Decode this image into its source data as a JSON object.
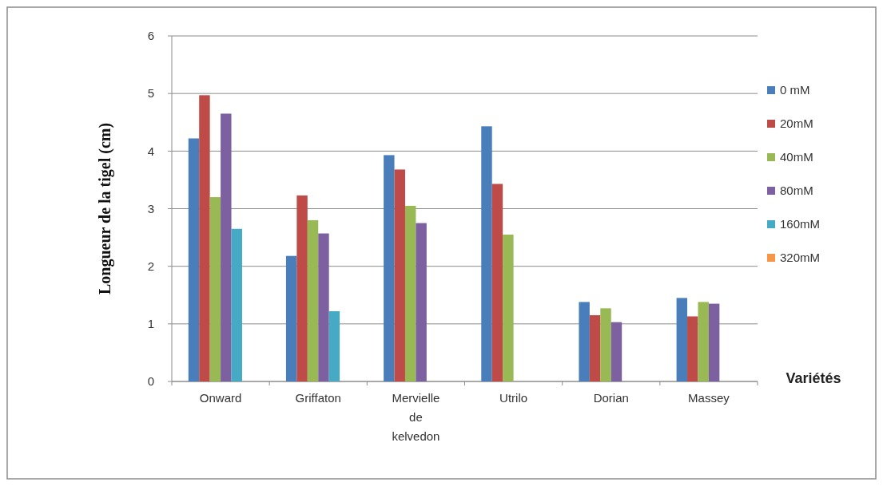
{
  "chart_data": {
    "type": "bar",
    "ylabel": "Longueur de la tigel (cm)",
    "xlabel": "Variétés",
    "categories": [
      "Onward",
      "Griffaton",
      "Mervielle de kelvedon",
      "Utrilo",
      "Dorian",
      "Massey"
    ],
    "series": [
      {
        "name": "0 mM",
        "color": "#4a7ebb",
        "values": [
          4.22,
          2.18,
          3.93,
          4.43,
          1.38,
          1.45
        ]
      },
      {
        "name": "20mM",
        "color": "#be4b48",
        "values": [
          4.97,
          3.23,
          3.68,
          3.43,
          1.15,
          1.13
        ]
      },
      {
        "name": "40mM",
        "color": "#98b954",
        "values": [
          3.2,
          2.8,
          3.05,
          2.55,
          1.27,
          1.38
        ]
      },
      {
        "name": "80mM",
        "color": "#7d60a0",
        "values": [
          4.65,
          2.57,
          2.75,
          null,
          1.03,
          1.35
        ]
      },
      {
        "name": "160mM",
        "color": "#46aac5",
        "values": [
          2.65,
          1.22,
          null,
          null,
          null,
          null
        ]
      },
      {
        "name": "320mM",
        "color": "#f79646",
        "values": [
          null,
          null,
          null,
          null,
          null,
          null
        ]
      }
    ],
    "ylim": [
      0,
      6
    ],
    "yticks": [
      0,
      1,
      2,
      3,
      4,
      5,
      6
    ],
    "grid": "y",
    "legend": "right"
  }
}
